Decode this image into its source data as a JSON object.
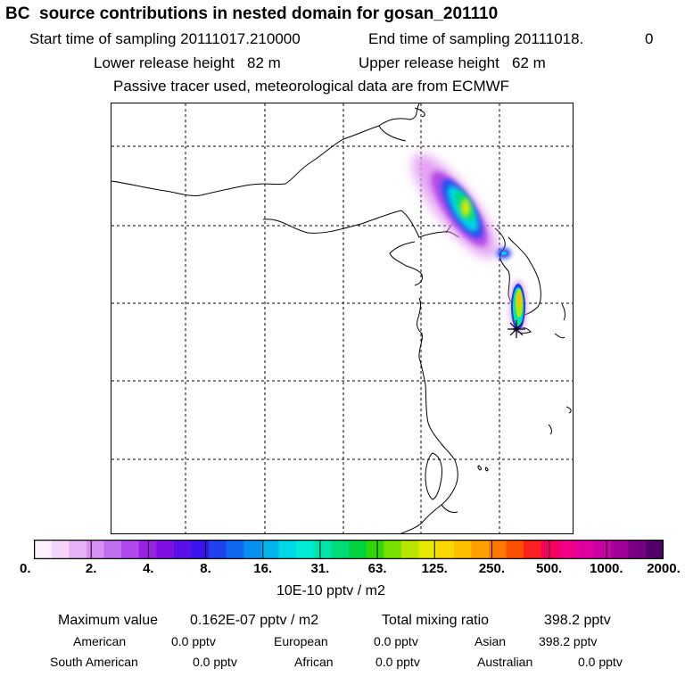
{
  "header": {
    "title": "BC  source contributions in nested domain for gosan_201110",
    "start_label": "Start time of sampling 20111017.210000",
    "end_label": "End time of sampling 20111018.",
    "end_suffix": "0",
    "lower_label": "Lower release height   82 m",
    "upper_label": "Upper release height   62 m",
    "note": "Passive tracer used, meteorological data are from ECMWF"
  },
  "colorbar": {
    "colors": [
      "#fcf0fc",
      "#f4d4fa",
      "#e8b0f6",
      "#d890f2",
      "#c070ee",
      "#b048ea",
      "#9a20e6",
      "#7e10e4",
      "#5a10e8",
      "#3a14ec",
      "#2040f0",
      "#1068f2",
      "#0890f0",
      "#00b4ec",
      "#00d8e6",
      "#00ecd4",
      "#00e6a8",
      "#00dc78",
      "#00d440",
      "#30d808",
      "#78e000",
      "#b8e600",
      "#e6e800",
      "#f8d800",
      "#fcc000",
      "#fca000",
      "#fc7a00",
      "#fc5000",
      "#fc2020",
      "#f80060",
      "#f00088",
      "#e000a0",
      "#c800a8",
      "#a00098",
      "#780080",
      "#500068"
    ],
    "ticks": [
      "0.",
      "2.",
      "4.",
      "8.",
      "16.",
      "31.",
      "63.",
      "125.",
      "250.",
      "500.",
      "1000.",
      "2000."
    ],
    "unit": "10E-10 pptv / m2"
  },
  "summary": {
    "max_label": "Maximum value",
    "max_value": "0.162E-07 pptv / m2",
    "total_label": "Total mixing ratio",
    "total_value": "398.2 pptv",
    "regions": [
      {
        "name": "American",
        "value": "0.0 pptv"
      },
      {
        "name": "European",
        "value": "0.0 pptv"
      },
      {
        "name": "Asian",
        "value": "398.2 pptv"
      },
      {
        "name": "South American",
        "value": "0.0 pptv"
      },
      {
        "name": "African",
        "value": "0.0 pptv"
      },
      {
        "name": "Australian",
        "value": "0.0 pptv"
      }
    ]
  },
  "map": {
    "receptor_marker": "asterisk-icon"
  }
}
